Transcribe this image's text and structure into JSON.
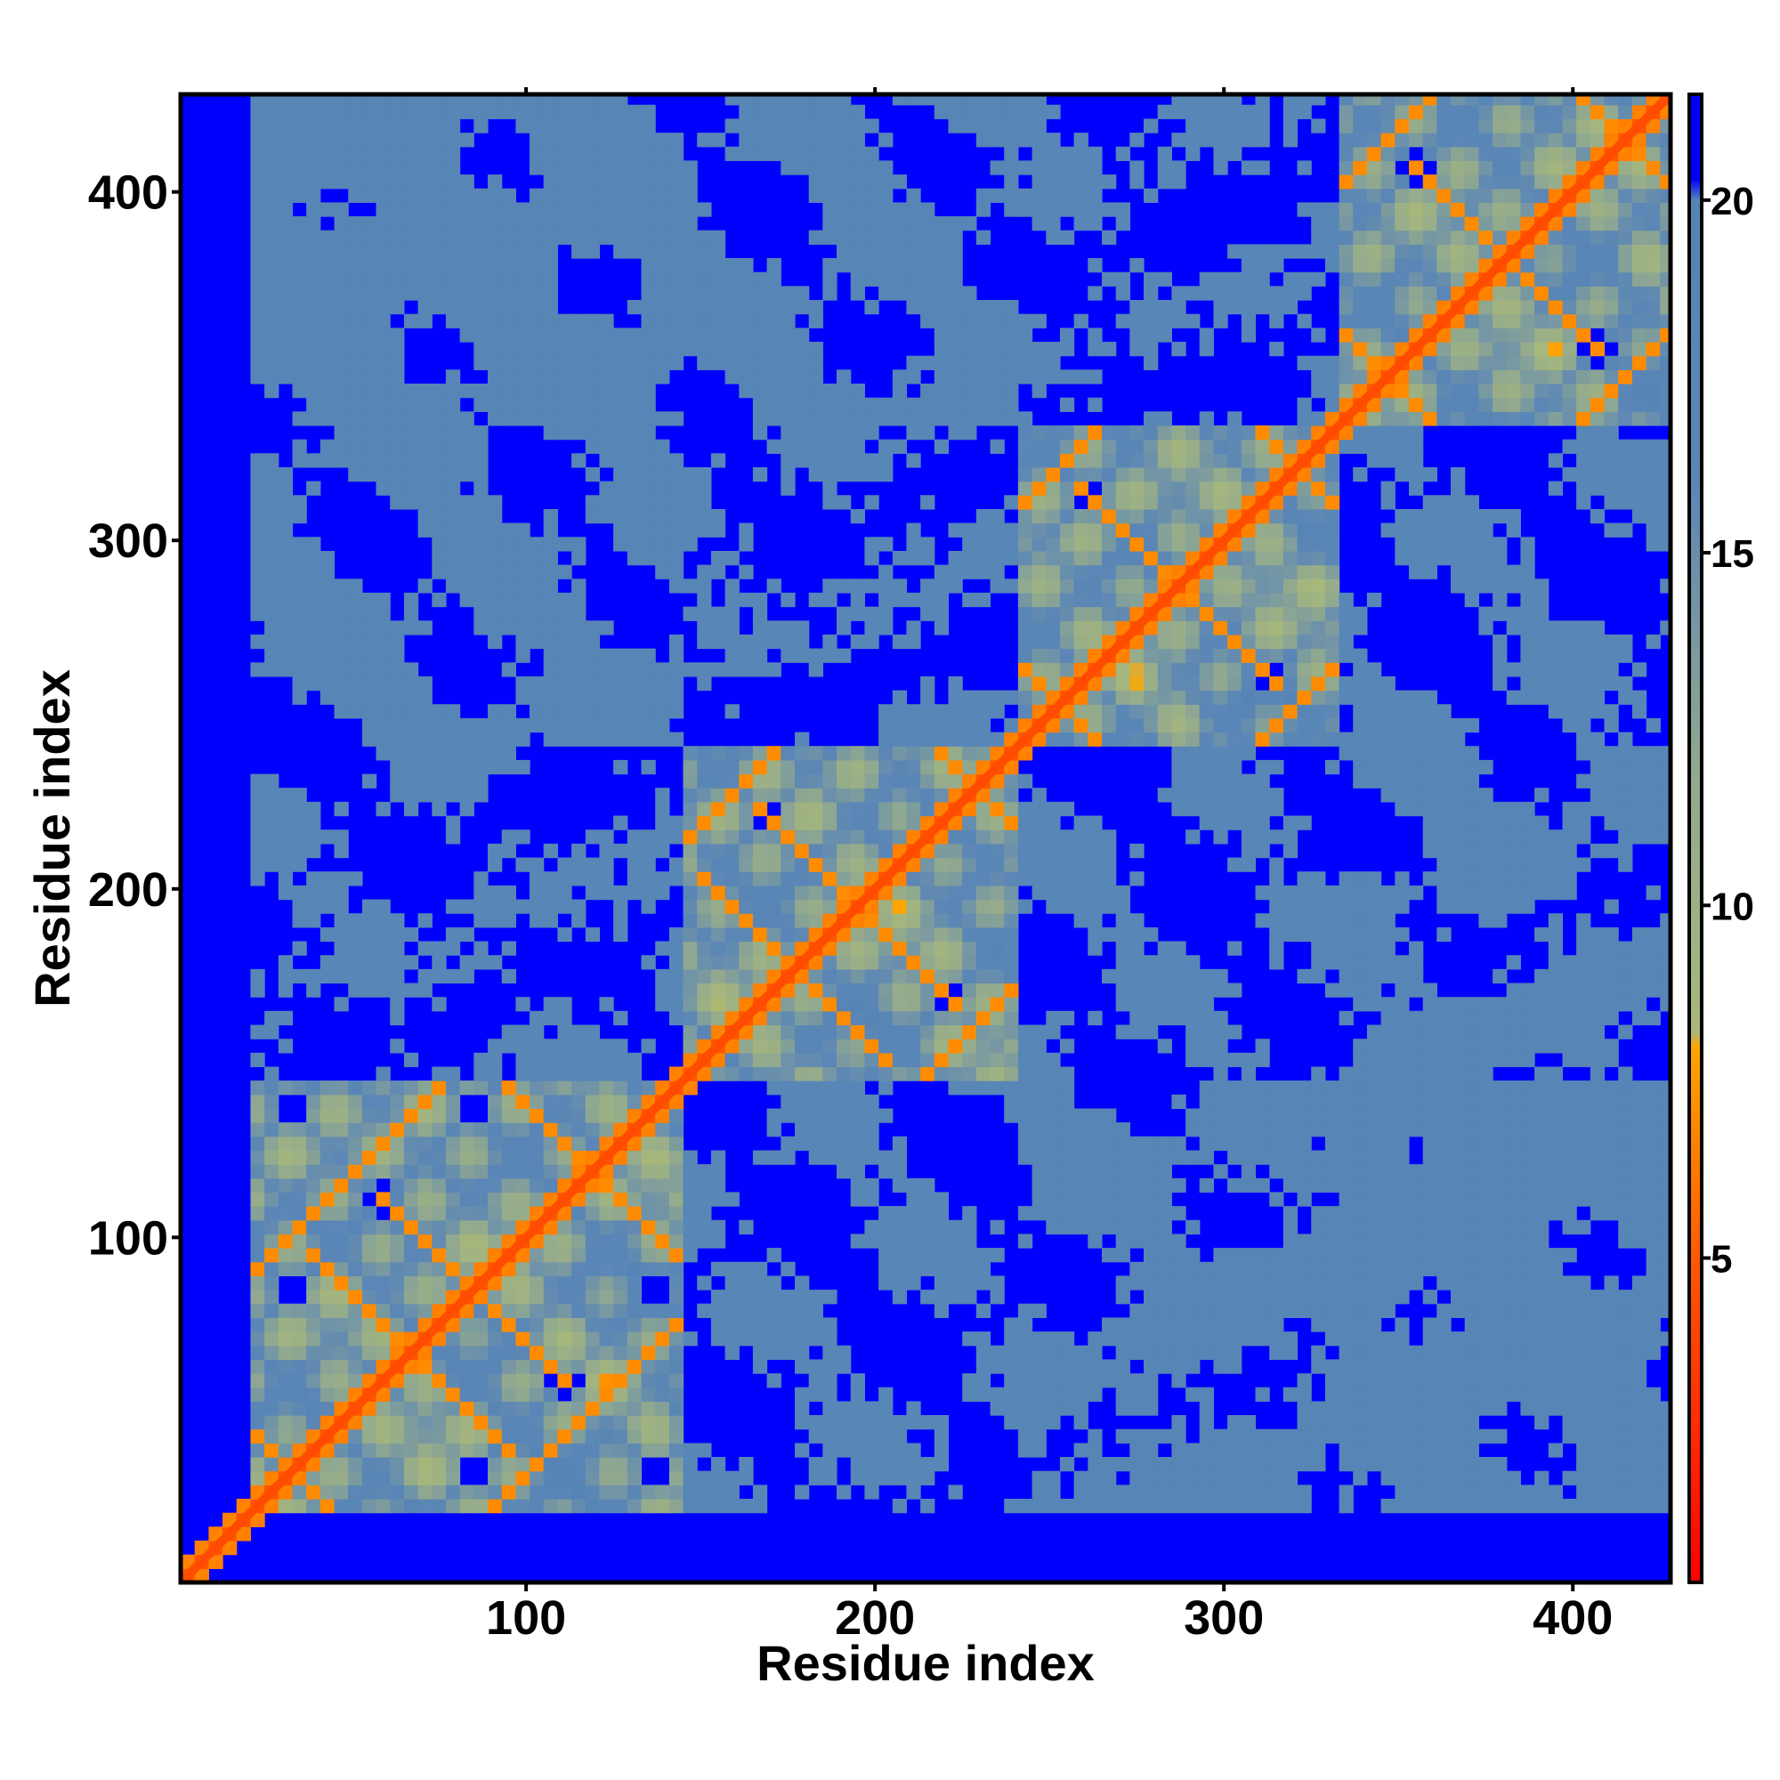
{
  "chart_data": {
    "type": "heatmap",
    "subtype": "residue distance map",
    "title": "",
    "xlabel": "Residue index",
    "ylabel": "Residue index",
    "xlim": [
      1,
      428
    ],
    "ylim": [
      1,
      428
    ],
    "x_ticks": [
      100,
      200,
      300,
      400
    ],
    "y_ticks": [
      100,
      200,
      300,
      400
    ],
    "colorbar": {
      "min": 0.4,
      "max": 21.5,
      "ticks": [
        5,
        10,
        15,
        20
      ],
      "stops": [
        {
          "value": 0.4,
          "color": "#ff0000"
        },
        {
          "value": 5.0,
          "color": "#ff5a00"
        },
        {
          "value": 8.0,
          "color": "#ffa500"
        },
        {
          "value": 8.2,
          "color": "#a8b87a"
        },
        {
          "value": 12.0,
          "color": "#90a890"
        },
        {
          "value": 16.0,
          "color": "#5b86b6"
        },
        {
          "value": 20.0,
          "color": "#5585b5"
        },
        {
          "value": 20.3,
          "color": "#0000ff"
        },
        {
          "value": 21.5,
          "color": "#0000ff"
        }
      ]
    },
    "background_color": "#0000ff",
    "grid": false,
    "description_elements": {
      "diagonal": "contact band along x = y",
      "domains": [
        {
          "from": 20,
          "to": 145
        },
        {
          "from": 145,
          "to": 240
        },
        {
          "from": 240,
          "to": 330
        },
        {
          "from": 330,
          "to": 428
        }
      ]
    }
  }
}
